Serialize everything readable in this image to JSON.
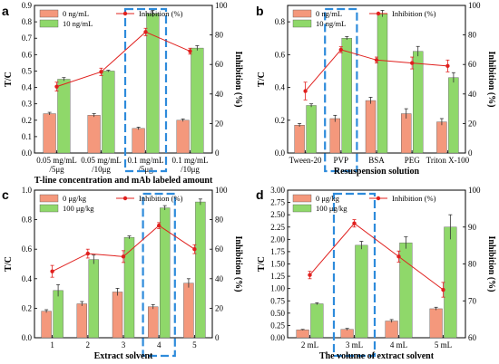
{
  "colors": {
    "bar_a": "#F4987C",
    "bar_b": "#8FD86A",
    "bar_edge": "#555555",
    "line": "#E0201E",
    "highlight": "#2E8BDB"
  },
  "chart_data": [
    {
      "type": "bar",
      "panel": "a",
      "categories": [
        "0.05 mg/mL\n/5μg",
        "0.05 mg/mL\n/10μg",
        "0.1 mg/mL\n/5μg",
        "0.1 mg/mL\n/10μg"
      ],
      "series": [
        {
          "name": "0 ng/mL",
          "values": [
            0.24,
            0.23,
            0.15,
            0.2
          ],
          "errors": [
            0.008,
            0.01,
            0.008,
            0.008
          ]
        },
        {
          "name": "10 ng/mL",
          "values": [
            0.45,
            0.5,
            0.85,
            0.64
          ],
          "errors": [
            0.01,
            0.005,
            0.02,
            0.015
          ]
        }
      ],
      "line": {
        "name": "Inhibition (%)",
        "values": [
          45,
          55,
          82,
          69
        ],
        "errors": [
          3,
          2.5,
          2.5,
          2
        ]
      },
      "xlabel": "T-line concentration and mAb labeled amount",
      "ylabel": "T/C",
      "ylabel2": "Inhibition (%)",
      "ylim": [
        0,
        0.9
      ],
      "yticks": [
        "0.0",
        "0.1",
        "0.2",
        "0.3",
        "0.4",
        "0.5",
        "0.6",
        "0.7",
        "0.8",
        "0.9"
      ],
      "y2lim": [
        0,
        100
      ],
      "y2ticks": [
        "0",
        "20",
        "40",
        "60",
        "80",
        "100"
      ],
      "highlight_index": 2,
      "legend": "top-left"
    },
    {
      "type": "bar",
      "panel": "b",
      "categories": [
        "Tween-20",
        "PVP",
        "BSA",
        "PEG",
        "Triton X-100"
      ],
      "series": [
        {
          "name": "0 ng/mL",
          "values": [
            0.17,
            0.21,
            0.32,
            0.24,
            0.19
          ],
          "errors": [
            0.01,
            0.02,
            0.02,
            0.03,
            0.02
          ]
        },
        {
          "name": "10 ng/mL",
          "values": [
            0.29,
            0.7,
            0.85,
            0.62,
            0.46
          ],
          "errors": [
            0.01,
            0.01,
            0.02,
            0.03,
            0.03
          ]
        }
      ],
      "line": {
        "name": "Inhibition (%)",
        "values": [
          42,
          70,
          63,
          61,
          59
        ],
        "errors": [
          6,
          2,
          2,
          4,
          4
        ]
      },
      "xlabel": "Resuspension solution",
      "ylabel": "T/C",
      "ylabel2": "Inhibition (%)",
      "ylim": [
        0,
        0.9
      ],
      "yticks": [
        "0.0",
        "0.2",
        "0.4",
        "0.6",
        "0.8"
      ],
      "ytick_values": [
        0,
        0.2,
        0.4,
        0.6,
        0.8
      ],
      "y2lim": [
        0,
        100
      ],
      "y2ticks": [
        "0",
        "20",
        "40",
        "60",
        "80",
        "100"
      ],
      "highlight_index": 1,
      "legend": "top-left"
    },
    {
      "type": "bar",
      "panel": "c",
      "categories": [
        "1",
        "2",
        "3",
        "4",
        "5"
      ],
      "series": [
        {
          "name": "0 μg/kg",
          "values": [
            0.18,
            0.23,
            0.31,
            0.21,
            0.37
          ],
          "errors": [
            0.01,
            0.015,
            0.025,
            0.015,
            0.03
          ]
        },
        {
          "name": "100 μg/kg",
          "values": [
            0.32,
            0.53,
            0.68,
            0.88,
            0.92
          ],
          "errors": [
            0.04,
            0.03,
            0.01,
            0.015,
            0.02
          ]
        }
      ],
      "line": {
        "name": "Inhibition (%)",
        "values": [
          45,
          57,
          55,
          76,
          60
        ],
        "errors": [
          4,
          3,
          4,
          2,
          3
        ]
      },
      "xlabel": "Extract solvent",
      "ylabel": "T/C",
      "ylabel2": "Inhibition (%)",
      "ylim": [
        0,
        1.0
      ],
      "yticks": [
        "0.0",
        "0.2",
        "0.4",
        "0.6",
        "0.8",
        "1.0"
      ],
      "y2lim": [
        0,
        100
      ],
      "y2ticks": [
        "0",
        "20",
        "40",
        "60",
        "80",
        "100"
      ],
      "highlight_index": 3,
      "legend": "top-left"
    },
    {
      "type": "bar",
      "panel": "d",
      "categories": [
        "2 mL",
        "3 mL",
        "4 mL",
        "5 mL"
      ],
      "series": [
        {
          "name": "0 μg/kg",
          "values": [
            0.16,
            0.17,
            0.34,
            0.59
          ],
          "errors": [
            0.01,
            0.02,
            0.03,
            0.03
          ]
        },
        {
          "name": "100 μg/kg",
          "values": [
            0.69,
            1.88,
            1.93,
            2.25
          ],
          "errors": [
            0.02,
            0.08,
            0.12,
            0.25
          ]
        }
      ],
      "line": {
        "name": "Inhibition (%)",
        "values": [
          77,
          91,
          82,
          73
        ],
        "errors": [
          1,
          1,
          1.5,
          2
        ]
      },
      "xlabel": "The volume of extract solvent",
      "ylabel": "T/C",
      "ylabel2": "Inhibition (%)",
      "ylim": [
        0,
        3.0
      ],
      "yticks": [
        "0.00",
        "0.25",
        "0.50",
        "0.75",
        "1.00",
        "1.25",
        "1.50",
        "1.75",
        "2.00",
        "2.25",
        "2.50",
        "2.75",
        "3.00"
      ],
      "y2lim": [
        60,
        100
      ],
      "y2ticks": [
        "60",
        "70",
        "80",
        "90",
        "100"
      ],
      "highlight_index": 1,
      "legend": "top-left"
    }
  ]
}
